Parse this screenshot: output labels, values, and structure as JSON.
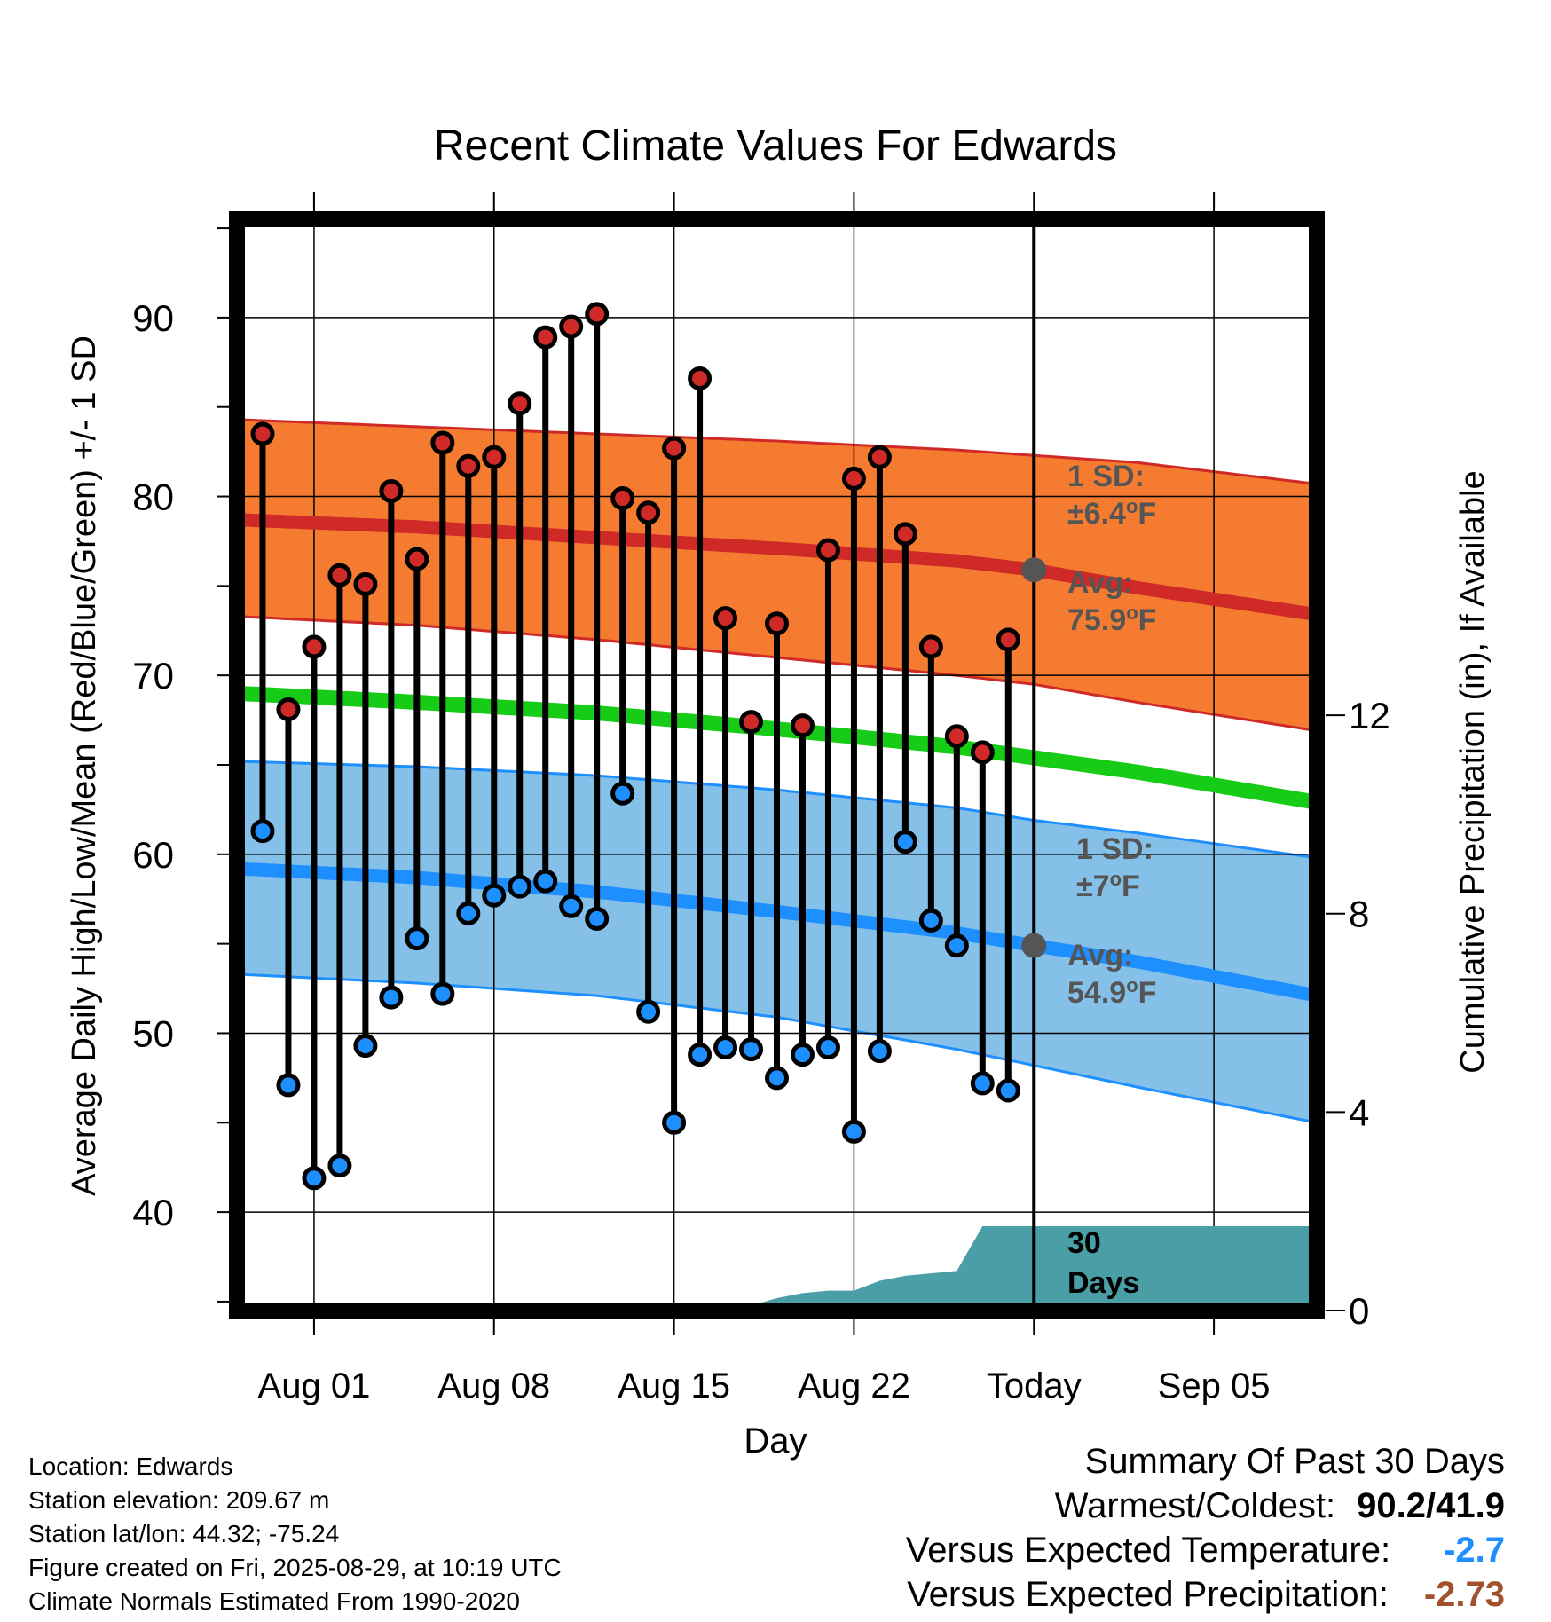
{
  "chart_data": {
    "type": "line",
    "title": "Recent Climate Values For Edwards",
    "xlabel": "Day",
    "ylabel": "Average Daily High/Low/Mean (Red/Blue/Green) +/- 1 SD",
    "y2label": "Cumulative Precipitation (in), If Available",
    "ylim": [
      34.5,
      95.5
    ],
    "y2lim": [
      0,
      22
    ],
    "xlim": [
      "2025-07-29",
      "2025-09-09"
    ],
    "yticks": [
      40,
      50,
      60,
      70,
      80,
      90
    ],
    "y2ticks": [
      0,
      4,
      8,
      12
    ],
    "xticks": [
      {
        "date": "2025-08-01",
        "label": "Aug 01"
      },
      {
        "date": "2025-08-08",
        "label": "Aug 08"
      },
      {
        "date": "2025-08-15",
        "label": "Aug 15"
      },
      {
        "date": "2025-08-22",
        "label": "Aug 22"
      },
      {
        "date": "2025-08-29",
        "label": "Today"
      },
      {
        "date": "2025-09-05",
        "label": "Sep 05"
      }
    ],
    "today": "2025-08-29",
    "grid": true,
    "observed": {
      "dates": [
        "2025-07-30",
        "2025-07-31",
        "2025-08-01",
        "2025-08-02",
        "2025-08-03",
        "2025-08-04",
        "2025-08-05",
        "2025-08-06",
        "2025-08-07",
        "2025-08-08",
        "2025-08-09",
        "2025-08-10",
        "2025-08-11",
        "2025-08-12",
        "2025-08-13",
        "2025-08-14",
        "2025-08-15",
        "2025-08-16",
        "2025-08-17",
        "2025-08-18",
        "2025-08-19",
        "2025-08-20",
        "2025-08-21",
        "2025-08-22",
        "2025-08-23",
        "2025-08-24",
        "2025-08-25",
        "2025-08-26",
        "2025-08-27",
        "2025-08-28"
      ],
      "highs": [
        83.5,
        68.1,
        71.6,
        75.6,
        75.1,
        80.3,
        76.5,
        83.0,
        81.7,
        82.2,
        85.2,
        88.9,
        89.5,
        90.2,
        79.9,
        79.1,
        82.7,
        86.6,
        73.2,
        67.4,
        72.9,
        67.2,
        77.0,
        81.0,
        82.2,
        77.9,
        71.6,
        66.6,
        65.7,
        72.0
      ],
      "lows": [
        61.3,
        47.1,
        41.9,
        42.6,
        49.3,
        52.0,
        55.3,
        52.2,
        56.7,
        57.7,
        58.2,
        58.5,
        57.1,
        56.4,
        63.4,
        51.2,
        45.0,
        48.8,
        49.2,
        49.1,
        47.5,
        48.8,
        49.2,
        44.5,
        49.0,
        60.7,
        56.3,
        54.9,
        47.2,
        46.8
      ]
    },
    "normals": {
      "dates": [
        "2025-07-29",
        "2025-08-05",
        "2025-08-12",
        "2025-08-19",
        "2025-08-26",
        "2025-08-29",
        "2025-09-02",
        "2025-09-09"
      ],
      "high_avg": [
        78.7,
        78.3,
        77.7,
        77.1,
        76.4,
        75.9,
        74.9,
        73.4
      ],
      "high_upper": [
        84.3,
        83.9,
        83.5,
        83.1,
        82.6,
        82.3,
        81.9,
        80.7
      ],
      "high_lower": [
        73.3,
        72.8,
        72.0,
        71.0,
        70.0,
        69.5,
        68.5,
        66.9
      ],
      "low_avg": [
        59.2,
        58.7,
        57.9,
        56.8,
        55.6,
        54.9,
        54.0,
        52.1
      ],
      "low_upper": [
        65.2,
        64.9,
        64.4,
        63.6,
        62.6,
        61.9,
        61.2,
        59.8
      ],
      "low_lower": [
        53.3,
        52.8,
        52.1,
        50.9,
        49.1,
        48.2,
        47.0,
        45.0
      ],
      "mean_avg": [
        69.0,
        68.5,
        67.9,
        67.0,
        66.0,
        65.4,
        64.6,
        62.9
      ]
    },
    "precip": {
      "dates": [
        "2025-07-29",
        "2025-08-16",
        "2025-08-17",
        "2025-08-18",
        "2025-08-19",
        "2025-08-20",
        "2025-08-21",
        "2025-08-22",
        "2025-08-23",
        "2025-08-24",
        "2025-08-25",
        "2025-08-26",
        "2025-08-27",
        "2025-08-28",
        "2025-09-09"
      ],
      "values": [
        0.0,
        0.0,
        0.05,
        0.1,
        0.25,
        0.35,
        0.4,
        0.4,
        0.6,
        0.7,
        0.75,
        0.8,
        1.7,
        1.7,
        1.7
      ]
    },
    "annotations": {
      "high_sd": "1 SD:",
      "high_sd_value": "±6.4",
      "high_avg_label": "Avg:",
      "high_avg_value": "75.9",
      "low_sd": "1 SD:",
      "low_sd_value": "±7",
      "low_avg_label": "Avg:",
      "low_avg_value": "54.9",
      "deg": "o",
      "unit": "F",
      "days_line1": "30",
      "days_line2": "Days"
    },
    "colors": {
      "high_band": "#f47b30",
      "high_line": "#cf2a27",
      "low_band": "#84c0e8",
      "low_line": "#1e8fff",
      "mean_line": "#17cc17",
      "precip": "#4a9ea6",
      "high_dot": "#cf2a27",
      "low_dot": "#1e8fff",
      "marker_gray": "#555555"
    }
  },
  "info": {
    "location": "Location: Edwards",
    "elevation": "Station elevation: 209.67 m",
    "latlon": "Station lat/lon: 44.32; -75.24",
    "created": "Figure created on Fri, 2025-08-29, at 10:19 UTC",
    "normals": "Climate Normals Estimated From 1990-2020"
  },
  "summary": {
    "title": "Summary Of Past 30 Days",
    "warmest_label": "Warmest/Coldest:",
    "warmest_value": "90.2/41.9",
    "temp_label": "Versus Expected Temperature:",
    "temp_value": "-2.7",
    "temp_color": "#1e8fff",
    "precip_label": "Versus Expected Precipitation:",
    "precip_value": "-2.73",
    "precip_color": "#a0522d"
  }
}
